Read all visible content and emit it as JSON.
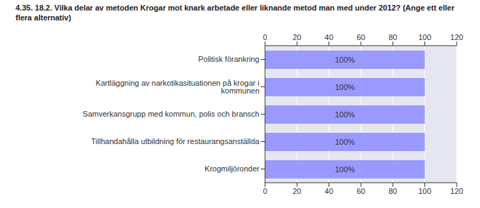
{
  "chart_data": {
    "type": "bar",
    "orientation": "horizontal",
    "title": "4.35. 18.2. Vilka delar av metoden Krogar mot knark arbetade eller liknande metod man med under 2012? (Ange ett eller flera alternativ)",
    "categories": [
      "Politisk förankring",
      "Kartläggning av narkotikasituationen på krogar i kommunen",
      "Samverkansgrupp med kommun, polis och bransch",
      "Tillhandahålla utbildning för restaurangsanställda",
      "Krogmiljöronder"
    ],
    "values": [
      100,
      100,
      100,
      100,
      100
    ],
    "value_labels": [
      "100%",
      "100%",
      "100%",
      "100%",
      "100%"
    ],
    "xlim": [
      0,
      120
    ],
    "xticks": [
      0,
      20,
      40,
      60,
      80,
      100,
      120
    ],
    "color": "#9999ff",
    "grid": true,
    "data_labels": true
  }
}
